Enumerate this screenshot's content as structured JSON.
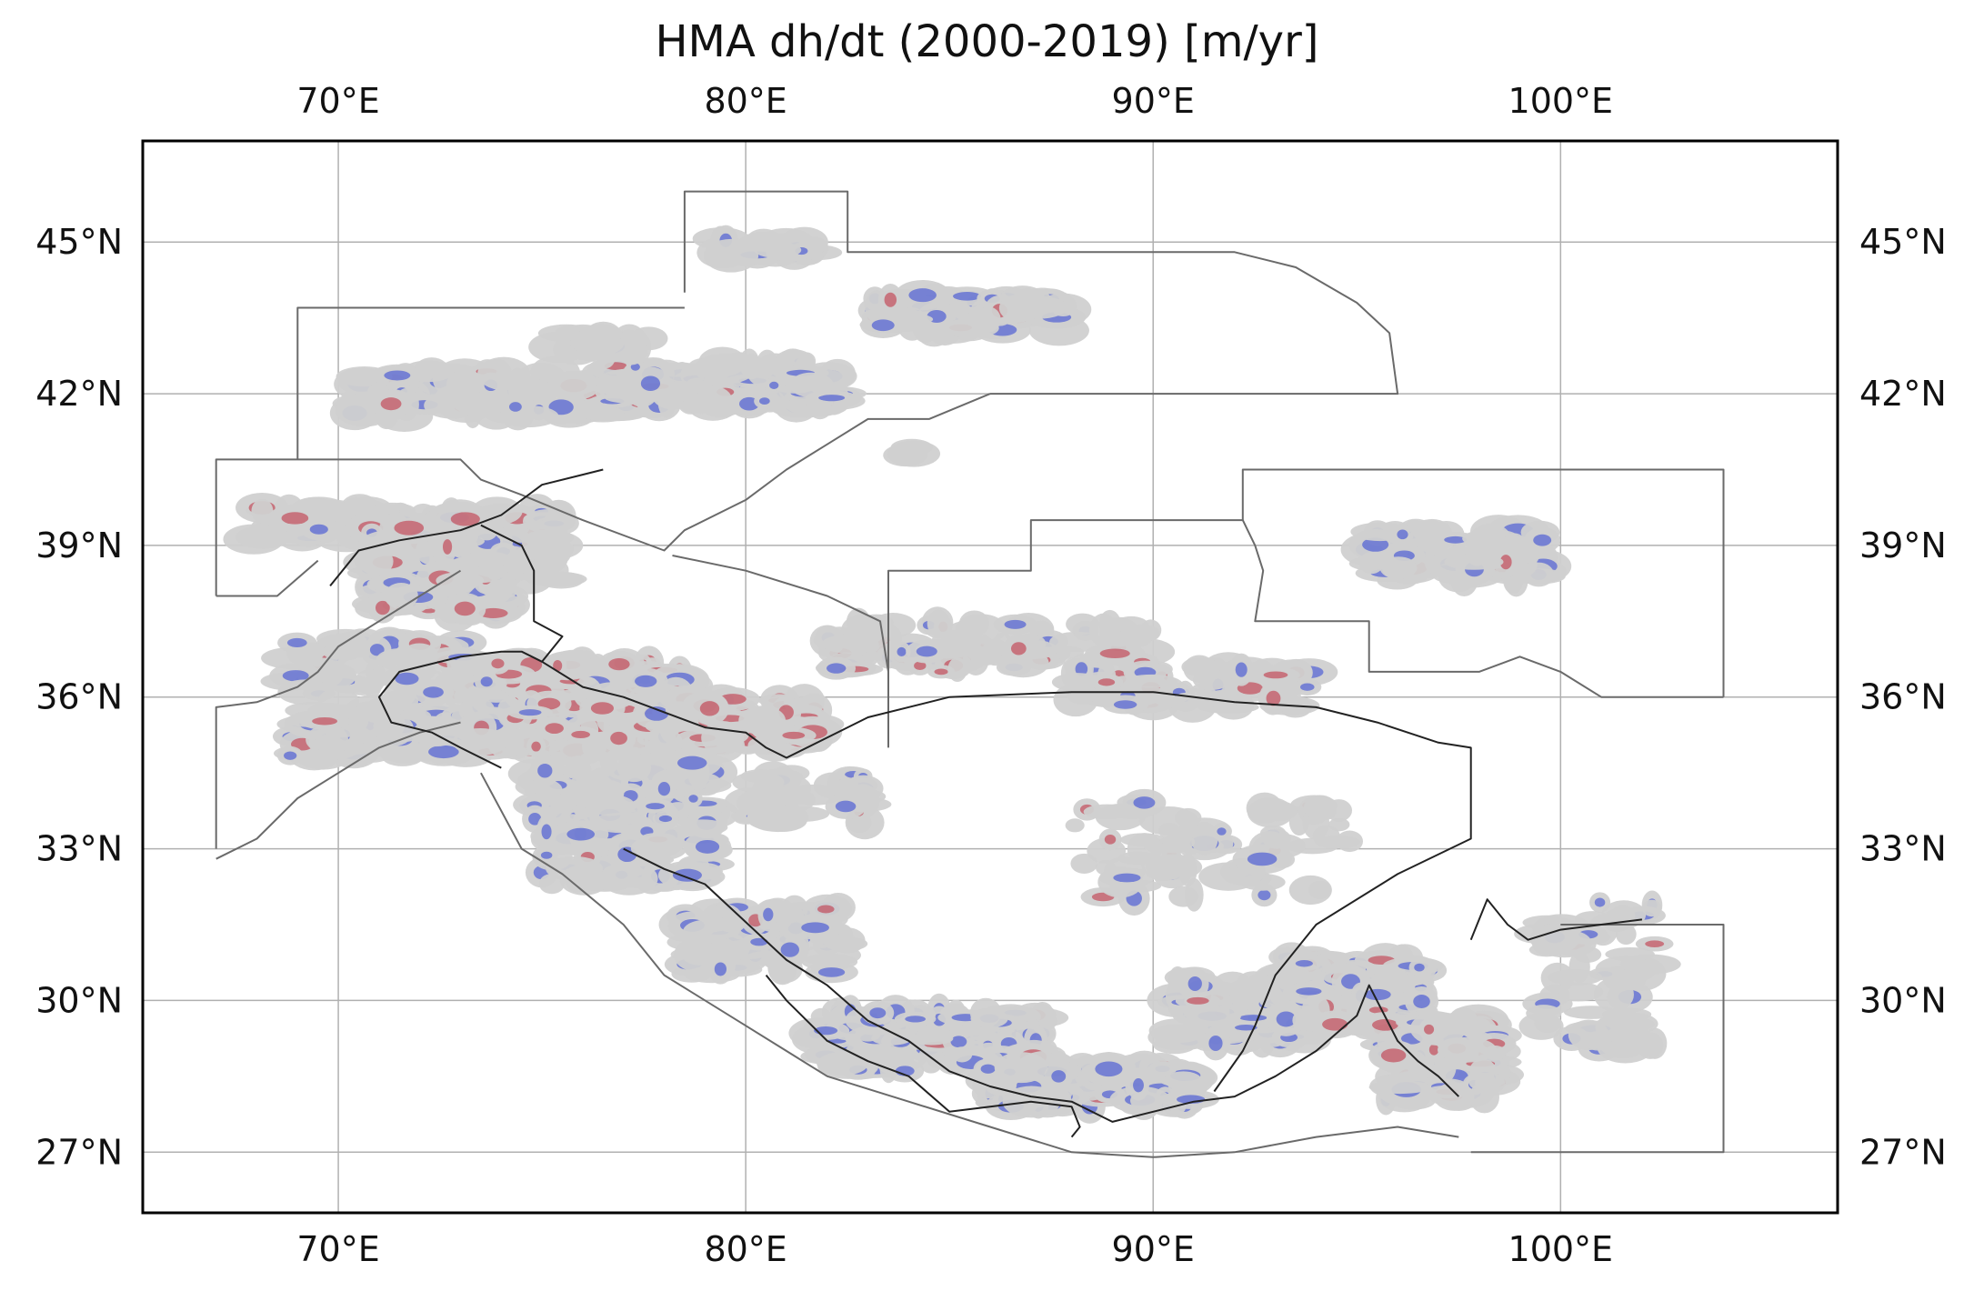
{
  "title": "HMA dh/dt (2000-2019) [m/yr]",
  "map": {
    "projection": "PlateCarree",
    "lon_range": [
      65.2,
      106.8
    ],
    "lat_range": [
      25.8,
      47.0
    ],
    "gridlines": true,
    "lon_ticks": [
      70,
      80,
      90,
      100
    ],
    "lat_ticks": [
      27,
      30,
      33,
      36,
      39,
      42,
      45
    ],
    "lon_tick_labels": [
      "70°E",
      "80°E",
      "90°E",
      "100°E"
    ],
    "lat_tick_labels": [
      "27°N",
      "30°N",
      "33°N",
      "36°N",
      "39°N",
      "42°N",
      "45°N"
    ],
    "colors": {
      "glacier_base": "#d0d0d0",
      "thinning": "#2b3fd6",
      "thickening": "#c0283a",
      "region_outline": "#6a6a6a",
      "country_border": "#222222",
      "grid": "#b0b0b0"
    }
  }
}
